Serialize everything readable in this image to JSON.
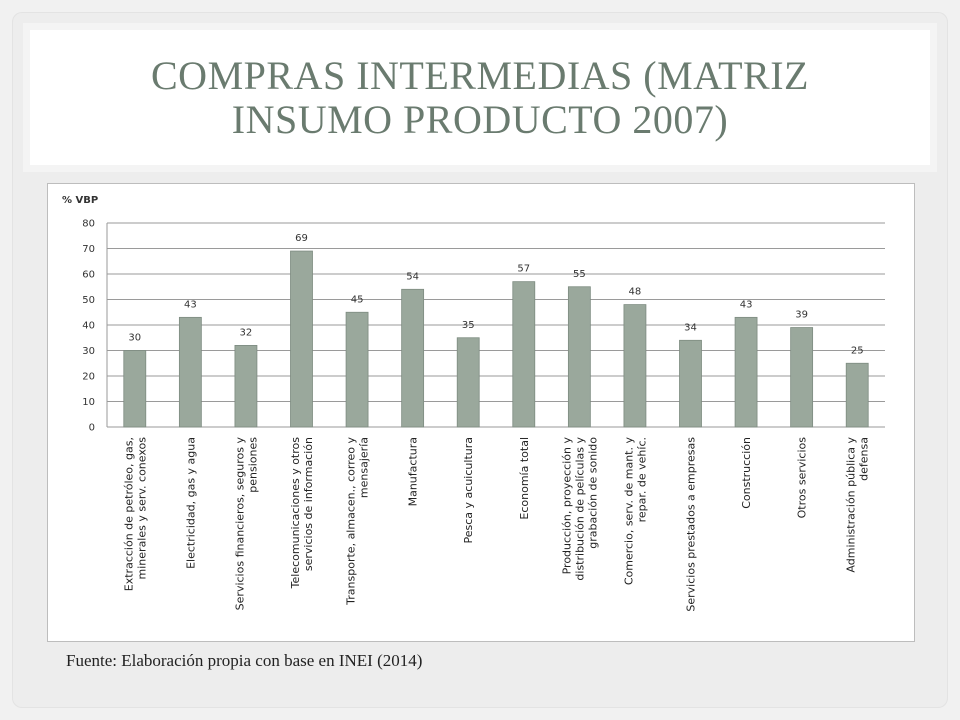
{
  "slide": {
    "title_line1": "COMPRAS INTERMEDIAS (MATRIZ",
    "title_line2": "INSUMO PRODUCTO 2007)",
    "source": "Fuente: Elaboración propia con base en INEI (2014)"
  },
  "colors": {
    "bar": "#9aa89c",
    "bar_stroke": "#7d8b80",
    "title": "#6a7b6f",
    "grid": "#9a9a9a"
  },
  "chart_data": {
    "type": "bar",
    "title": "",
    "ylabel": "% VBP",
    "xlabel": "",
    "ylim": [
      0,
      80
    ],
    "yticks": [
      0,
      10,
      20,
      30,
      40,
      50,
      60,
      70,
      80
    ],
    "grid": true,
    "legend": "none",
    "categories": [
      [
        "Extracción de petróleo, gas,",
        "minerales y serv. conexos"
      ],
      [
        "Electricidad, gas y agua"
      ],
      [
        "Servicios financieros, seguros y",
        "pensiones"
      ],
      [
        "Telecomunicaciones y otros",
        "servicios de información"
      ],
      [
        "Transporte, almacen., correo y",
        "mensajería"
      ],
      [
        "Manufactura"
      ],
      [
        "Pesca y acuicultura"
      ],
      [
        "Economía total"
      ],
      [
        "Producción, proyección y",
        "distribución de películas y",
        "grabación de sonido"
      ],
      [
        "Comercio, serv. de mant. y",
        "repar. de vehíc."
      ],
      [
        "Servicios prestados a empresas"
      ],
      [
        "Construcción"
      ],
      [
        "Otros servicios"
      ],
      [
        "Administración pública y",
        "defensa"
      ]
    ],
    "values": [
      30,
      43,
      32,
      69,
      45,
      54,
      35,
      57,
      55,
      48,
      34,
      43,
      39,
      25
    ],
    "data_labels": [
      "30",
      "43",
      "32",
      "69",
      "45",
      "54",
      "35",
      "57",
      "55",
      "48",
      "34",
      "43",
      "39",
      "25"
    ]
  }
}
